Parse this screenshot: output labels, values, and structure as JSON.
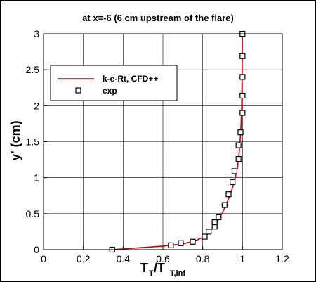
{
  "chart_data": {
    "type": "line",
    "title": "at x=-6 (6 cm upstream of the flare)",
    "xlabel": {
      "main": "T",
      "sub1": "T",
      "mid": "/T",
      "sub2": "T,inf"
    },
    "ylabel": "y' (cm)",
    "xlim": [
      0,
      1.2
    ],
    "ylim": [
      0,
      3
    ],
    "xticks": [
      "0",
      "0.2",
      "0.4",
      "0.6",
      "0.8",
      "1",
      "1.2"
    ],
    "yticks": [
      "0",
      "0.5",
      "1",
      "1.5",
      "2",
      "2.5",
      "3"
    ],
    "grid": true,
    "legend_position": "upper-left",
    "series": [
      {
        "name": "k-e-Rt, CFD++",
        "style": "line",
        "color": "#cc0000",
        "points": [
          [
            0.33,
            0.0
          ],
          [
            0.4,
            0.01
          ],
          [
            0.5,
            0.03
          ],
          [
            0.6,
            0.05
          ],
          [
            0.7,
            0.08
          ],
          [
            0.76,
            0.12
          ],
          [
            0.8,
            0.17
          ],
          [
            0.83,
            0.24
          ],
          [
            0.86,
            0.33
          ],
          [
            0.88,
            0.42
          ],
          [
            0.9,
            0.52
          ],
          [
            0.92,
            0.64
          ],
          [
            0.94,
            0.78
          ],
          [
            0.96,
            0.95
          ],
          [
            0.975,
            1.15
          ],
          [
            0.985,
            1.4
          ],
          [
            0.992,
            1.7
          ],
          [
            0.996,
            2.0
          ],
          [
            0.998,
            2.5
          ],
          [
            0.999,
            3.0
          ]
        ]
      },
      {
        "name": "exp",
        "style": "marker",
        "marker": "square",
        "points": [
          [
            0.345,
            0.0
          ],
          [
            0.64,
            0.06
          ],
          [
            0.69,
            0.09
          ],
          [
            0.75,
            0.11
          ],
          [
            0.81,
            0.18
          ],
          [
            0.83,
            0.25
          ],
          [
            0.86,
            0.32
          ],
          [
            0.86,
            0.38
          ],
          [
            0.88,
            0.45
          ],
          [
            0.91,
            0.62
          ],
          [
            0.93,
            0.77
          ],
          [
            0.95,
            0.94
          ],
          [
            0.96,
            1.09
          ],
          [
            0.98,
            1.26
          ],
          [
            0.98,
            1.45
          ],
          [
            0.99,
            1.63
          ],
          [
            1.0,
            1.9
          ],
          [
            1.0,
            2.14
          ],
          [
            1.0,
            2.4
          ],
          [
            1.0,
            2.69
          ],
          [
            1.0,
            3.0
          ]
        ]
      }
    ]
  }
}
